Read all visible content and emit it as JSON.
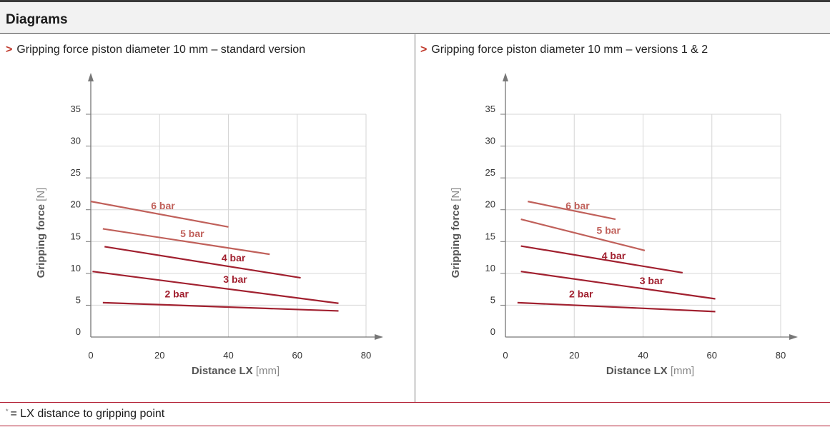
{
  "section": {
    "title": "Diagrams"
  },
  "panels": [
    {
      "heading_marker": ">",
      "heading": "Gripping force piston diameter 10 mm – standard version"
    },
    {
      "heading_marker": ">",
      "heading": "Gripping force piston diameter 10 mm – versions 1 & 2"
    }
  ],
  "footnote": {
    "marker": "*",
    "text": "= LX distance to gripping point"
  },
  "colors": {
    "accent_rule": "#b0182d",
    "dark_line": "#a1202f",
    "light_line": "#c0605a",
    "grid": "#d6d6d6",
    "axis": "#777777"
  },
  "chart_data": [
    {
      "type": "line",
      "xlabel": "Distance LX",
      "xunit": "[mm]",
      "ylabel": "Gripping force",
      "yunit": "[N]",
      "xlim": [
        0,
        80
      ],
      "ylim": [
        0,
        35
      ],
      "xticks": [
        0,
        20,
        40,
        60,
        80
      ],
      "yticks": [
        0,
        5,
        10,
        15,
        20,
        25,
        30,
        35
      ],
      "grid": true,
      "series": [
        {
          "name": "6 bar",
          "x": [
            0,
            40
          ],
          "y": [
            21.3,
            17.3
          ],
          "color": "#c0605a",
          "label_at": [
            17.5,
            20.1
          ]
        },
        {
          "name": "5 bar",
          "x": [
            3.5,
            52
          ],
          "y": [
            17.0,
            13.0
          ],
          "color": "#c0605a",
          "label_at": [
            26,
            15.7
          ]
        },
        {
          "name": "4 bar",
          "x": [
            4,
            61
          ],
          "y": [
            14.2,
            9.3
          ],
          "color": "#a1202f",
          "label_at": [
            38,
            11.9
          ]
        },
        {
          "name": "3 bar",
          "x": [
            0.5,
            72
          ],
          "y": [
            10.3,
            5.3
          ],
          "color": "#a1202f",
          "label_at": [
            38.5,
            8.5
          ]
        },
        {
          "name": "2 bar",
          "x": [
            3.5,
            72
          ],
          "y": [
            5.4,
            4.1
          ],
          "color": "#a1202f",
          "label_at": [
            21.5,
            6.2
          ]
        }
      ]
    },
    {
      "type": "line",
      "xlabel": "Distance LX",
      "xunit": "[mm]",
      "ylabel": "Gripping force",
      "yunit": "[N]",
      "xlim": [
        0,
        80
      ],
      "ylim": [
        0,
        35
      ],
      "xticks": [
        0,
        20,
        40,
        60,
        80
      ],
      "yticks": [
        0,
        5,
        10,
        15,
        20,
        25,
        30,
        35
      ],
      "grid": true,
      "series": [
        {
          "name": "6 bar",
          "x": [
            6.5,
            32
          ],
          "y": [
            21.3,
            18.5
          ],
          "color": "#c0605a",
          "label_at": [
            17.5,
            20.1
          ]
        },
        {
          "name": "5 bar",
          "x": [
            4.5,
            40.5
          ],
          "y": [
            18.5,
            13.6
          ],
          "color": "#c0605a",
          "label_at": [
            26.5,
            16.2
          ]
        },
        {
          "name": "4 bar",
          "x": [
            4.5,
            51.5
          ],
          "y": [
            14.3,
            10.1
          ],
          "color": "#a1202f",
          "label_at": [
            28,
            12.2
          ]
        },
        {
          "name": "3 bar",
          "x": [
            4.5,
            61
          ],
          "y": [
            10.3,
            6.0
          ],
          "color": "#a1202f",
          "label_at": [
            39,
            8.3
          ]
        },
        {
          "name": "2 bar",
          "x": [
            3.5,
            61
          ],
          "y": [
            5.4,
            4.0
          ],
          "color": "#a1202f",
          "label_at": [
            18.5,
            6.2
          ]
        }
      ]
    }
  ]
}
